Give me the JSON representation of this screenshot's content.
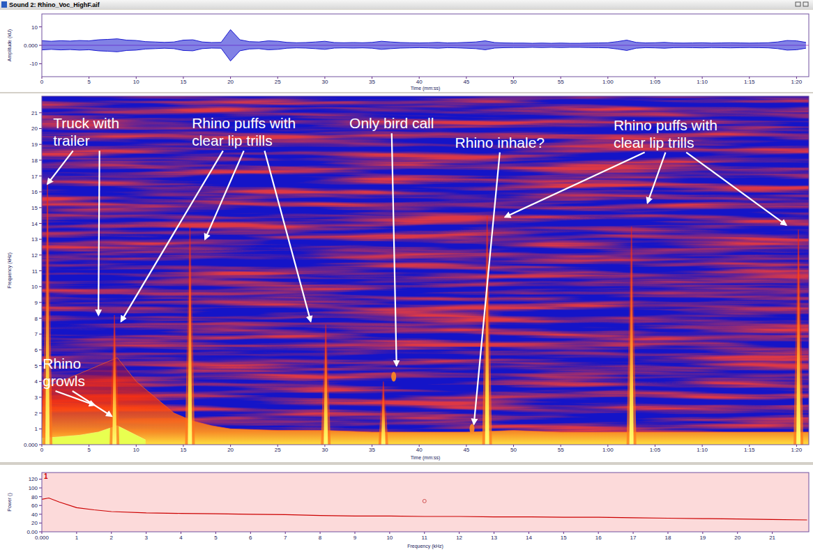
{
  "window_title": "Sound 2: Rhino_Voc_HighF.aif",
  "chart_data": [
    {
      "type": "waveform",
      "x_label": "Time (mm:ss)",
      "y_label": "Amplitude (kU)",
      "color": "#1a1ad0",
      "xlim": [
        0,
        81.3
      ],
      "ylim": [
        -17,
        17
      ],
      "xticks": [
        0,
        5,
        10,
        15,
        20,
        25,
        30,
        35,
        40,
        45,
        50,
        55,
        {
          "value": 60,
          "label": "1:00"
        },
        {
          "value": 65,
          "label": "1:05"
        },
        {
          "value": 70,
          "label": "1:10"
        },
        {
          "value": 75,
          "label": "1:15"
        },
        {
          "value": 80,
          "label": "1:20"
        }
      ],
      "yticks": [
        -10,
        {
          "value": 0,
          "label": "0.000"
        },
        10
      ],
      "x": [
        0,
        1,
        2,
        3,
        4,
        5,
        6,
        7,
        8,
        9,
        10,
        11,
        12,
        13,
        14,
        15,
        16,
        17,
        18,
        19,
        20,
        21,
        22,
        23,
        24,
        25,
        26,
        27,
        28,
        29,
        30,
        31,
        32,
        33,
        34,
        35,
        36,
        37,
        38,
        39,
        40,
        41,
        42,
        43,
        44,
        45,
        46,
        47,
        48,
        49,
        50,
        51,
        52,
        53,
        54,
        55,
        56,
        57,
        58,
        59,
        60,
        61,
        62,
        63,
        64,
        65,
        66,
        67,
        68,
        69,
        70,
        71,
        72,
        73,
        74,
        75,
        76,
        77,
        78,
        79,
        80,
        81
      ],
      "values": [
        2.5,
        2.2,
        2.5,
        2.3,
        2.6,
        2.4,
        3.0,
        3.2,
        3.5,
        2.8,
        2.6,
        2.0,
        1.8,
        1.6,
        1.8,
        2.8,
        3.0,
        1.8,
        1.5,
        1.6,
        8.5,
        3.0,
        2.0,
        1.8,
        2.4,
        2.2,
        1.6,
        1.4,
        1.5,
        1.8,
        2.2,
        1.5,
        1.4,
        1.5,
        1.4,
        1.6,
        2.2,
        1.8,
        1.5,
        1.4,
        1.3,
        1.4,
        1.6,
        1.3,
        1.4,
        1.6,
        1.8,
        2.4,
        1.5,
        1.3,
        1.2,
        1.2,
        1.1,
        1.2,
        1.1,
        1.2,
        1.1,
        1.1,
        1.2,
        1.3,
        1.4,
        2.0,
        2.8,
        1.6,
        1.3,
        1.4,
        1.6,
        1.3,
        1.2,
        1.3,
        1.4,
        1.2,
        1.3,
        1.4,
        1.3,
        1.2,
        1.3,
        1.4,
        1.8,
        2.6,
        2.4,
        1.6
      ]
    },
    {
      "type": "spectrogram",
      "x_label": "Time (mm:ss)",
      "y_label": "Frequency (kHz)",
      "xlim": [
        0,
        81.3
      ],
      "ylim": [
        0,
        22.05
      ],
      "xticks": [
        0,
        5,
        10,
        15,
        20,
        25,
        30,
        35,
        40,
        45,
        50,
        55,
        {
          "value": 60,
          "label": "1:00"
        },
        {
          "value": 65,
          "label": "1:05"
        },
        {
          "value": 70,
          "label": "1:10"
        },
        {
          "value": 75,
          "label": "1:15"
        },
        {
          "value": 80,
          "label": "1:20"
        }
      ],
      "yticks": [
        {
          "value": 0,
          "label": "0.000"
        },
        1,
        2,
        3,
        4,
        5,
        6,
        7,
        8,
        9,
        10,
        11,
        12,
        13,
        14,
        15,
        16,
        17,
        18,
        19,
        20,
        21
      ],
      "x": [
        0.6,
        7.7,
        15.7,
        30.1,
        36.2,
        47.2,
        62.5,
        80.2
      ],
      "values": [
        16.5,
        8.2,
        13.8,
        7.6,
        4.0,
        14.5,
        13.8,
        13.6
      ],
      "floor": {
        "x": [
          0,
          2,
          4,
          6,
          8,
          10,
          12,
          14,
          16,
          18,
          20,
          25,
          30,
          35,
          40,
          45,
          50,
          55,
          60,
          65,
          70,
          75,
          81.3
        ],
        "values": [
          3.5,
          4.0,
          4.5,
          5.0,
          5.5,
          4.0,
          3.0,
          2.0,
          1.5,
          1.2,
          1.0,
          0.9,
          0.9,
          0.8,
          0.8,
          0.8,
          0.9,
          0.8,
          0.8,
          0.8,
          0.8,
          0.8,
          0.8
        ]
      },
      "growl_band": {
        "x": [
          0,
          2,
          4,
          6,
          7,
          8,
          9,
          10,
          11
        ],
        "values": [
          0.4,
          0.5,
          0.6,
          0.8,
          1.0,
          1.2,
          0.9,
          0.6,
          0.3
        ]
      },
      "spots": {
        "x": [
          37.3,
          45.6
        ],
        "values": [
          4.3,
          1.0
        ]
      },
      "annotations": [
        {
          "lines": [
            "Truck with",
            "trailer"
          ],
          "x": 1.2,
          "y": 20.8,
          "targets": {
            "x": [
              0.6,
              6.0
            ],
            "y": [
              16.5,
              8.2
            ]
          }
        },
        {
          "lines": [
            "Rhino puffs with",
            "clear lip trills"
          ],
          "x": 15.9,
          "y": 20.8,
          "targets": {
            "x": [
              8.4,
              17.3,
              28.5
            ],
            "y": [
              7.8,
              13.0,
              7.8
            ]
          }
        },
        {
          "lines": [
            "Only bird call"
          ],
          "x": 32.6,
          "y": 20.8,
          "targets": {
            "x": [
              37.6
            ],
            "y": [
              5.0
            ]
          }
        },
        {
          "lines": [
            "Rhino inhale?"
          ],
          "x": 43.8,
          "y": 19.6,
          "targets": {
            "x": [
              45.8
            ],
            "y": [
              1.3
            ]
          }
        },
        {
          "lines": [
            "Rhino puffs with",
            "clear lip trills"
          ],
          "x": 60.6,
          "y": 20.7,
          "targets": {
            "x": [
              49.1,
              64.2,
              78.9
            ],
            "y": [
              14.4,
              15.3,
              13.9
            ]
          }
        },
        {
          "lines": [
            "Rhino",
            "growls"
          ],
          "x": 0.1,
          "y": 5.6,
          "targets": {
            "x": [
              5.6,
              7.4
            ],
            "y": [
              2.5,
              1.8
            ]
          }
        }
      ]
    },
    {
      "type": "line",
      "x_label": "Frequency (kHz)",
      "y_label": "Power ()",
      "channel": "1",
      "color": "#cc0000",
      "xlim": [
        0,
        22.05
      ],
      "ylim": [
        0,
        135
      ],
      "xticks": [
        {
          "value": 0,
          "label": "0.000"
        },
        1,
        2,
        3,
        4,
        5,
        6,
        7,
        8,
        9,
        10,
        11,
        12,
        13,
        14,
        15,
        16,
        17,
        18,
        19,
        20,
        21
      ],
      "yticks": [
        {
          "value": 0,
          "label": "0.00"
        },
        20,
        40,
        60,
        80,
        100,
        120
      ],
      "x": [
        0,
        0.2,
        0.5,
        1,
        1.5,
        2,
        3,
        4,
        5,
        6,
        7,
        8,
        9,
        10,
        11,
        12,
        13,
        14,
        15,
        16,
        17,
        18,
        19,
        20,
        21,
        22
      ],
      "values": [
        74,
        77,
        68,
        55,
        50,
        46,
        43,
        42,
        41,
        40,
        39,
        37,
        36,
        36,
        35,
        35,
        34,
        34,
        33,
        33,
        32,
        31,
        30,
        29,
        28,
        27
      ],
      "cursor": {
        "x": 11,
        "y": 70
      }
    }
  ]
}
